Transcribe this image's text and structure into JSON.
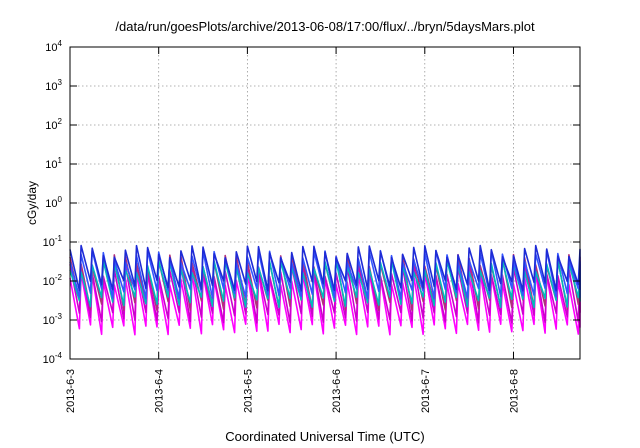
{
  "chart_data": {
    "type": "line",
    "title": "/data/run/goesPlots/archive/2013-06-08/17:00/flux/../bryn/5daysMars.plot",
    "xlabel": "Coordinated Universal Time (UTC)",
    "ylabel": "cGy/day",
    "xlim": [
      "2013-06-03T00:00",
      "2013-06-08T18:00"
    ],
    "ylim": [
      0.0001,
      10000
    ],
    "y_scale": "log",
    "grid": true,
    "legend": "none",
    "x_ticks": [
      "2013-6-3",
      "2013-6-4",
      "2013-6-5",
      "2013-6-6",
      "2013-6-7",
      "2013-6-8"
    ],
    "y_ticks": [
      {
        "value": 0.0001,
        "base": "10",
        "exp": "-4"
      },
      {
        "value": 0.001,
        "base": "10",
        "exp": "-3"
      },
      {
        "value": 0.01,
        "base": "10",
        "exp": "-2"
      },
      {
        "value": 0.1,
        "base": "10",
        "exp": "-1"
      },
      {
        "value": 1,
        "base": "10",
        "exp": "0"
      },
      {
        "value": 10,
        "base": "10",
        "exp": "1"
      },
      {
        "value": 100,
        "base": "10",
        "exp": "2"
      },
      {
        "value": 1000,
        "base": "10",
        "exp": "3"
      },
      {
        "value": 10000,
        "base": "10",
        "exp": "4"
      }
    ],
    "series": [
      {
        "color": "#ff00ff",
        "peak": 0.012,
        "trough": 0.0006
      },
      {
        "color": "#cc00cc",
        "peak": 0.02,
        "trough": 0.0012
      },
      {
        "color": "#b0307a",
        "peak": 0.035,
        "trough": 0.0025
      },
      {
        "color": "#00bbbb",
        "peak": 0.025,
        "trough": 0.003
      },
      {
        "color": "#3355ff",
        "peak": 0.045,
        "trough": 0.005
      },
      {
        "color": "#1e2bd6",
        "peak": 0.06,
        "trough": 0.008
      }
    ]
  }
}
